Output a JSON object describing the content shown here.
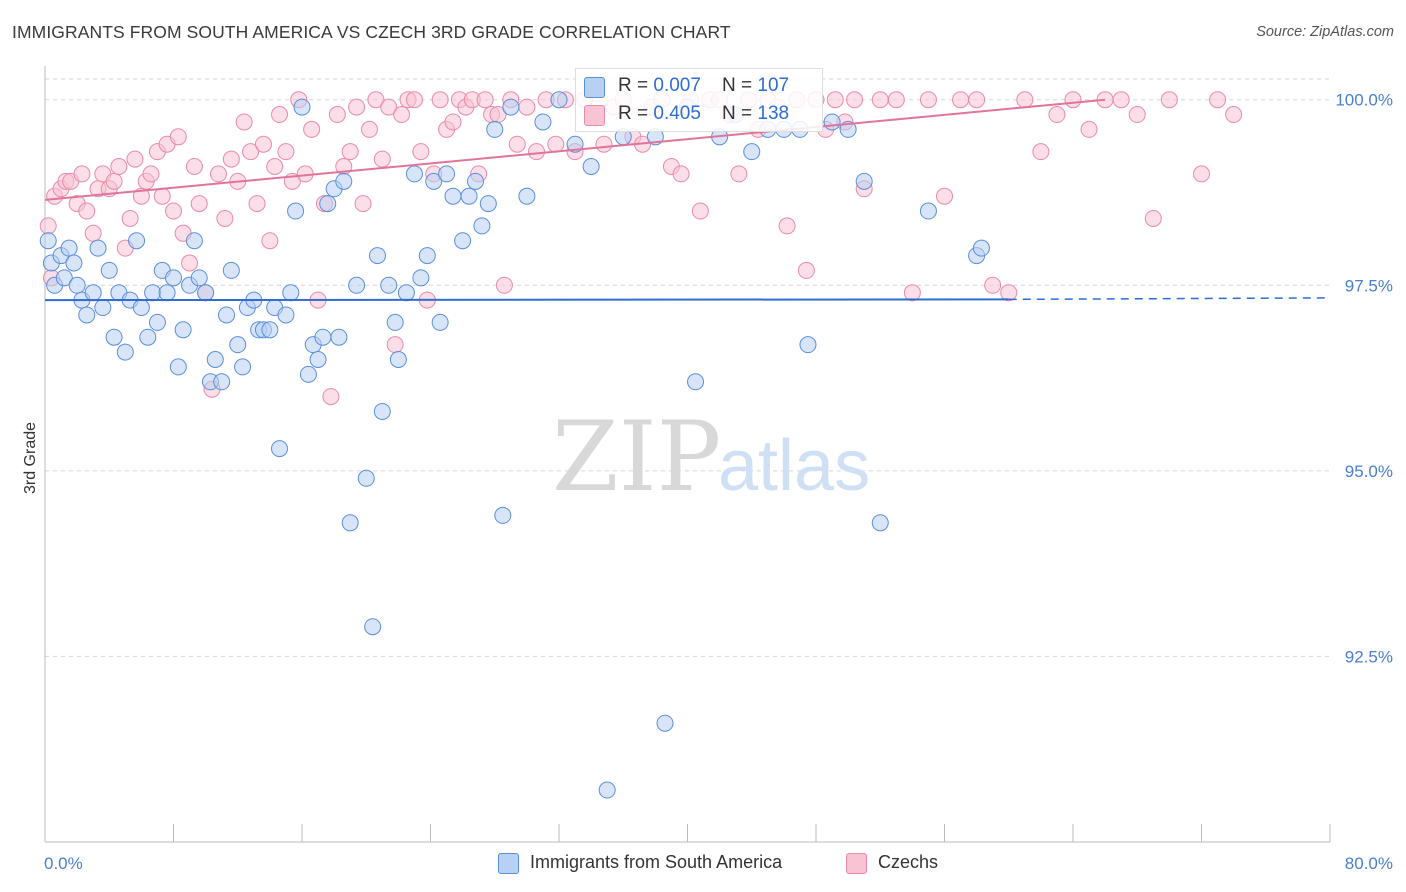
{
  "header": {
    "title": "IMMIGRANTS FROM SOUTH AMERICA VS CZECH 3RD GRADE CORRELATION CHART",
    "source": "Source: ZipAtlas.com"
  },
  "watermark": {
    "zip": "ZIP",
    "atlas": "atlas"
  },
  "legend": {
    "rows": [
      {
        "r_label": "R = ",
        "r_value": "0.007",
        "n_label": "N = ",
        "n_value": "107"
      },
      {
        "r_label": "R = ",
        "r_value": "0.405",
        "n_label": "N = ",
        "n_value": "138"
      }
    ]
  },
  "bottom_legend": {
    "series1": "Immigrants from South America",
    "series2": "Czechs"
  },
  "colors": {
    "blue_fill": "#b8d0f2",
    "blue_stroke": "#5a8fdc",
    "blue_line": "#2f6dd1",
    "pink_fill": "#f8c3d3",
    "pink_stroke": "#ea8aa9",
    "pink_line": "#e2739a",
    "grid": "#d6d6d6",
    "tick_label": "#4a7fcf"
  },
  "chart_data": {
    "type": "scatter",
    "title": "IMMIGRANTS FROM SOUTH AMERICA VS CZECH 3RD GRADE CORRELATION CHART",
    "xlabel": "",
    "ylabel": "3rd Grade",
    "xlim": [
      0,
      80
    ],
    "ylim": [
      90.0,
      100.4
    ],
    "x_tick_labels": [
      "0.0%",
      "80.0%"
    ],
    "y_ticks": [
      92.5,
      95.0,
      97.5,
      100.0
    ],
    "y_tick_labels": [
      "92.5%",
      "95.0%",
      "97.5%",
      "100.0%"
    ],
    "grid": "horizontal dashed",
    "legend_position": "top-center",
    "series": [
      {
        "name": "Immigrants from South America",
        "R": 0.007,
        "N": 107,
        "trend": {
          "x": [
            0,
            60
          ],
          "y": [
            97.3,
            97.31
          ],
          "dashed_extension_to": 80
        },
        "points": [
          [
            0.2,
            98.1
          ],
          [
            0.4,
            97.8
          ],
          [
            0.6,
            97.5
          ],
          [
            1.0,
            97.9
          ],
          [
            1.2,
            97.6
          ],
          [
            1.5,
            98.0
          ],
          [
            1.8,
            97.8
          ],
          [
            2.0,
            97.5
          ],
          [
            2.3,
            97.3
          ],
          [
            2.6,
            97.1
          ],
          [
            3.0,
            97.4
          ],
          [
            3.3,
            98.0
          ],
          [
            3.6,
            97.2
          ],
          [
            4.0,
            97.7
          ],
          [
            4.3,
            96.8
          ],
          [
            4.6,
            97.4
          ],
          [
            5.0,
            96.6
          ],
          [
            5.3,
            97.3
          ],
          [
            5.7,
            98.1
          ],
          [
            6.0,
            97.2
          ],
          [
            6.4,
            96.8
          ],
          [
            6.7,
            97.4
          ],
          [
            7.0,
            97.0
          ],
          [
            7.3,
            97.7
          ],
          [
            7.6,
            97.4
          ],
          [
            8.0,
            97.6
          ],
          [
            8.3,
            96.4
          ],
          [
            8.6,
            96.9
          ],
          [
            9.0,
            97.5
          ],
          [
            9.3,
            98.1
          ],
          [
            9.6,
            97.6
          ],
          [
            10.0,
            97.4
          ],
          [
            10.3,
            96.2
          ],
          [
            10.6,
            96.5
          ],
          [
            11.0,
            96.2
          ],
          [
            11.3,
            97.1
          ],
          [
            11.6,
            97.7
          ],
          [
            12.0,
            96.7
          ],
          [
            12.3,
            96.4
          ],
          [
            12.6,
            97.2
          ],
          [
            13.0,
            97.3
          ],
          [
            13.3,
            96.9
          ],
          [
            13.6,
            96.9
          ],
          [
            14.0,
            96.9
          ],
          [
            14.3,
            97.2
          ],
          [
            14.6,
            95.3
          ],
          [
            15.0,
            97.1
          ],
          [
            15.3,
            97.4
          ],
          [
            15.6,
            98.5
          ],
          [
            16.0,
            99.9
          ],
          [
            16.4,
            96.3
          ],
          [
            16.7,
            96.7
          ],
          [
            17.0,
            96.5
          ],
          [
            17.3,
            96.8
          ],
          [
            17.6,
            98.6
          ],
          [
            18.0,
            98.8
          ],
          [
            18.3,
            96.8
          ],
          [
            18.6,
            98.9
          ],
          [
            19.0,
            94.3
          ],
          [
            19.4,
            97.5
          ],
          [
            20.0,
            94.9
          ],
          [
            20.4,
            92.9
          ],
          [
            20.7,
            97.9
          ],
          [
            21.0,
            95.8
          ],
          [
            21.4,
            97.5
          ],
          [
            21.8,
            97.0
          ],
          [
            22.0,
            96.5
          ],
          [
            22.5,
            97.4
          ],
          [
            23.0,
            99.0
          ],
          [
            23.4,
            97.6
          ],
          [
            23.8,
            97.9
          ],
          [
            24.2,
            98.9
          ],
          [
            24.6,
            97.0
          ],
          [
            25.0,
            99.0
          ],
          [
            25.4,
            98.7
          ],
          [
            26.0,
            98.1
          ],
          [
            26.4,
            98.7
          ],
          [
            26.8,
            98.9
          ],
          [
            27.2,
            98.3
          ],
          [
            27.6,
            98.6
          ],
          [
            28.0,
            99.6
          ],
          [
            28.5,
            94.4
          ],
          [
            29.0,
            99.9
          ],
          [
            30.0,
            98.7
          ],
          [
            31.0,
            99.7
          ],
          [
            32.0,
            100.0
          ],
          [
            33.0,
            99.4
          ],
          [
            34.0,
            99.1
          ],
          [
            35.0,
            90.7
          ],
          [
            36.0,
            99.5
          ],
          [
            38.0,
            99.5
          ],
          [
            38.6,
            91.6
          ],
          [
            40.0,
            99.9
          ],
          [
            40.5,
            96.2
          ],
          [
            42.0,
            99.5
          ],
          [
            43.0,
            99.8
          ],
          [
            44.0,
            99.3
          ],
          [
            45.0,
            99.6
          ],
          [
            46.0,
            99.6
          ],
          [
            47.0,
            99.6
          ],
          [
            47.5,
            96.7
          ],
          [
            49.0,
            99.7
          ],
          [
            50.0,
            99.6
          ],
          [
            51.0,
            98.9
          ],
          [
            52.0,
            94.3
          ],
          [
            55.0,
            98.5
          ],
          [
            58.0,
            97.9
          ],
          [
            58.3,
            98.0
          ]
        ]
      },
      {
        "name": "Czechs",
        "R": 0.405,
        "N": 138,
        "trend": {
          "x": [
            0,
            66
          ],
          "y": [
            98.65,
            100.0
          ]
        },
        "points": [
          [
            0.2,
            98.3
          ],
          [
            0.4,
            97.6
          ],
          [
            0.6,
            98.7
          ],
          [
            1.0,
            98.8
          ],
          [
            1.3,
            98.9
          ],
          [
            1.6,
            98.9
          ],
          [
            2.0,
            98.6
          ],
          [
            2.3,
            99.0
          ],
          [
            2.6,
            98.5
          ],
          [
            3.0,
            98.2
          ],
          [
            3.3,
            98.8
          ],
          [
            3.6,
            99.0
          ],
          [
            4.0,
            98.8
          ],
          [
            4.3,
            98.9
          ],
          [
            4.6,
            99.1
          ],
          [
            5.0,
            98.0
          ],
          [
            5.3,
            98.4
          ],
          [
            5.6,
            99.2
          ],
          [
            6.0,
            98.7
          ],
          [
            6.3,
            98.9
          ],
          [
            6.6,
            99.0
          ],
          [
            7.0,
            99.3
          ],
          [
            7.3,
            98.7
          ],
          [
            7.6,
            99.4
          ],
          [
            8.0,
            98.5
          ],
          [
            8.3,
            99.5
          ],
          [
            8.6,
            98.2
          ],
          [
            9.0,
            97.8
          ],
          [
            9.3,
            99.1
          ],
          [
            9.6,
            98.6
          ],
          [
            10.0,
            97.4
          ],
          [
            10.4,
            96.1
          ],
          [
            10.8,
            99.0
          ],
          [
            11.2,
            98.4
          ],
          [
            11.6,
            99.2
          ],
          [
            12.0,
            98.9
          ],
          [
            12.4,
            99.7
          ],
          [
            12.8,
            99.3
          ],
          [
            13.2,
            98.6
          ],
          [
            13.6,
            99.4
          ],
          [
            14.0,
            98.1
          ],
          [
            14.3,
            99.1
          ],
          [
            14.6,
            99.8
          ],
          [
            15.0,
            99.3
          ],
          [
            15.4,
            98.9
          ],
          [
            15.8,
            100.0
          ],
          [
            16.2,
            99.0
          ],
          [
            16.6,
            99.6
          ],
          [
            17.0,
            97.3
          ],
          [
            17.4,
            98.6
          ],
          [
            17.8,
            96.0
          ],
          [
            18.2,
            99.8
          ],
          [
            18.6,
            99.1
          ],
          [
            19.0,
            99.3
          ],
          [
            19.4,
            99.9
          ],
          [
            19.8,
            98.6
          ],
          [
            20.2,
            99.6
          ],
          [
            20.6,
            100.0
          ],
          [
            21.0,
            99.2
          ],
          [
            21.4,
            99.9
          ],
          [
            21.8,
            96.7
          ],
          [
            22.2,
            99.8
          ],
          [
            22.6,
            100.0
          ],
          [
            23.0,
            100.0
          ],
          [
            23.4,
            99.3
          ],
          [
            23.8,
            97.3
          ],
          [
            24.2,
            99.0
          ],
          [
            24.6,
            100.0
          ],
          [
            25.0,
            99.6
          ],
          [
            25.4,
            99.7
          ],
          [
            25.8,
            100.0
          ],
          [
            26.2,
            99.9
          ],
          [
            26.6,
            100.0
          ],
          [
            27.0,
            99.0
          ],
          [
            27.4,
            100.0
          ],
          [
            27.8,
            99.8
          ],
          [
            28.2,
            99.8
          ],
          [
            28.6,
            97.5
          ],
          [
            29.0,
            100.0
          ],
          [
            29.4,
            99.4
          ],
          [
            30.0,
            99.9
          ],
          [
            30.6,
            99.3
          ],
          [
            31.2,
            100.0
          ],
          [
            31.8,
            99.4
          ],
          [
            32.4,
            100.0
          ],
          [
            33.0,
            99.3
          ],
          [
            33.6,
            100.0
          ],
          [
            34.2,
            99.8
          ],
          [
            34.8,
            99.4
          ],
          [
            35.4,
            99.9
          ],
          [
            36.0,
            100.0
          ],
          [
            36.6,
            99.5
          ],
          [
            37.2,
            99.4
          ],
          [
            37.8,
            99.9
          ],
          [
            38.4,
            100.0
          ],
          [
            39.0,
            99.1
          ],
          [
            39.6,
            99.0
          ],
          [
            40.2,
            100.0
          ],
          [
            40.8,
            98.5
          ],
          [
            41.4,
            100.0
          ],
          [
            42.0,
            100.0
          ],
          [
            42.6,
            99.8
          ],
          [
            43.2,
            99.0
          ],
          [
            43.8,
            100.0
          ],
          [
            44.4,
            99.6
          ],
          [
            45.0,
            100.0
          ],
          [
            45.6,
            99.9
          ],
          [
            46.2,
            98.3
          ],
          [
            46.8,
            100.0
          ],
          [
            47.4,
            97.7
          ],
          [
            48.0,
            100.0
          ],
          [
            48.6,
            99.6
          ],
          [
            49.2,
            100.0
          ],
          [
            49.8,
            99.7
          ],
          [
            50.4,
            100.0
          ],
          [
            51.0,
            98.8
          ],
          [
            52.0,
            100.0
          ],
          [
            53.0,
            100.0
          ],
          [
            54.0,
            97.4
          ],
          [
            55.0,
            100.0
          ],
          [
            56.0,
            98.7
          ],
          [
            57.0,
            100.0
          ],
          [
            58.0,
            100.0
          ],
          [
            59.0,
            97.5
          ],
          [
            60.0,
            97.4
          ],
          [
            61.0,
            100.0
          ],
          [
            62.0,
            99.3
          ],
          [
            63.0,
            99.8
          ],
          [
            64.0,
            100.0
          ],
          [
            65.0,
            99.6
          ],
          [
            66.0,
            100.0
          ],
          [
            67.0,
            100.0
          ],
          [
            68.0,
            99.8
          ],
          [
            69.0,
            98.4
          ],
          [
            70.0,
            100.0
          ],
          [
            72.0,
            99.0
          ],
          [
            73.0,
            100.0
          ],
          [
            74.0,
            99.8
          ]
        ]
      }
    ]
  }
}
